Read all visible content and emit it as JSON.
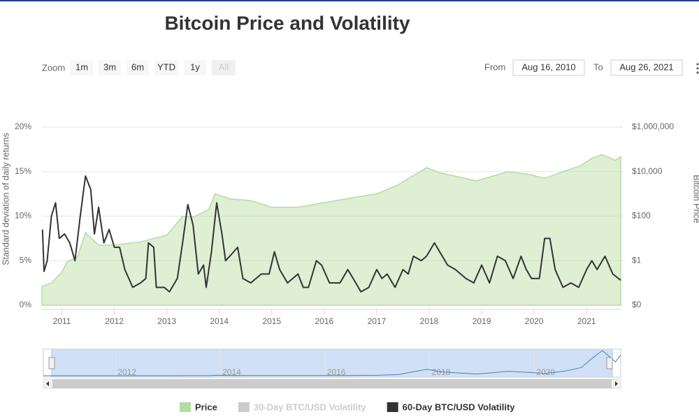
{
  "range_selector": {
    "zoom_label": "Zoom",
    "buttons": [
      "1m",
      "3m",
      "6m",
      "YTD",
      "1y",
      "All"
    ],
    "from_label": "From",
    "from": "Aug 16, 2010",
    "to_label": "To",
    "to": "Aug 26, 2021"
  },
  "chart_data": {
    "type": "line",
    "title": "Bitcoin Price and Volatility",
    "y_label": "Standard deviation of daily returns",
    "y2_label": "Bitcoin Price",
    "xlim": [
      2010.62,
      2021.65
    ],
    "xticks": [
      2011,
      2012,
      2013,
      2014,
      2015,
      2016,
      2017,
      2018,
      2019,
      2020,
      2021
    ],
    "ylim": [
      0,
      20
    ],
    "yticks": [
      {
        "value": 0,
        "label": "0%"
      },
      {
        "value": 5,
        "label": "5%"
      },
      {
        "value": 10,
        "label": "10%"
      },
      {
        "value": 15,
        "label": "15%"
      },
      {
        "value": 20,
        "label": "20%"
      }
    ],
    "y2lim": [
      0.01,
      1000000
    ],
    "y2_log": true,
    "y2ticks": [
      {
        "value": 0.01,
        "label": "$0"
      },
      {
        "value": 1,
        "label": "$1"
      },
      {
        "value": 100,
        "label": "$100"
      },
      {
        "value": 10000,
        "label": "$10,000"
      },
      {
        "value": 1000000,
        "label": "$1,000,000"
      }
    ],
    "grid": true,
    "series": [
      {
        "name": "Price",
        "color": "#b5dca0",
        "axis": "y2",
        "kind": "area",
        "x": [
          2010.62,
          2010.8,
          2011.0,
          2011.1,
          2011.3,
          2011.45,
          2011.7,
          2012.0,
          2012.5,
          2013.0,
          2013.3,
          2013.5,
          2013.8,
          2013.92,
          2014.2,
          2014.6,
          2015.0,
          2015.5,
          2016.0,
          2016.5,
          2017.0,
          2017.4,
          2017.95,
          2018.2,
          2018.9,
          2019.5,
          2019.9,
          2020.2,
          2020.6,
          2020.9,
          2021.1,
          2021.3,
          2021.55,
          2021.65
        ],
        "values": [
          0.07,
          0.1,
          0.3,
          0.9,
          1.5,
          18,
          5,
          5,
          7,
          14,
          100,
          90,
          200,
          1000,
          600,
          500,
          250,
          250,
          400,
          650,
          1000,
          2500,
          15000,
          9000,
          3800,
          10000,
          7500,
          5000,
          11000,
          19000,
          40000,
          58000,
          32000,
          48000
        ]
      },
      {
        "name": "30-Day BTC/USD Volatility",
        "color": "#cccccc",
        "visible": false
      },
      {
        "name": "60-Day BTC/USD Volatility",
        "color": "#333333",
        "axis": "y",
        "x": [
          2010.63,
          2010.66,
          2010.72,
          2010.8,
          2010.88,
          2010.95,
          2011.05,
          2011.15,
          2011.25,
          2011.35,
          2011.45,
          2011.55,
          2011.62,
          2011.7,
          2011.8,
          2011.9,
          2012.0,
          2012.1,
          2012.2,
          2012.35,
          2012.5,
          2012.6,
          2012.65,
          2012.75,
          2012.8,
          2012.95,
          2013.05,
          2013.2,
          2013.3,
          2013.4,
          2013.5,
          2013.6,
          2013.7,
          2013.75,
          2013.85,
          2013.95,
          2014.05,
          2014.12,
          2014.2,
          2014.35,
          2014.45,
          2014.6,
          2014.8,
          2014.95,
          2015.05,
          2015.15,
          2015.3,
          2015.5,
          2015.6,
          2015.7,
          2015.85,
          2015.95,
          2016.1,
          2016.3,
          2016.45,
          2016.55,
          2016.7,
          2016.85,
          2017.0,
          2017.1,
          2017.2,
          2017.35,
          2017.5,
          2017.6,
          2017.7,
          2017.85,
          2017.95,
          2018.1,
          2018.2,
          2018.35,
          2018.5,
          2018.7,
          2018.85,
          2019.0,
          2019.15,
          2019.3,
          2019.45,
          2019.6,
          2019.75,
          2019.85,
          2019.95,
          2020.1,
          2020.2,
          2020.3,
          2020.4,
          2020.55,
          2020.7,
          2020.85,
          2021.0,
          2021.1,
          2021.2,
          2021.35,
          2021.5,
          2021.65
        ],
        "values": [
          8.5,
          3.8,
          5,
          10,
          11.5,
          7.5,
          8,
          7,
          5,
          10,
          14.5,
          13,
          8,
          11,
          7,
          8.5,
          6.5,
          6.5,
          4,
          2,
          2.5,
          3,
          7,
          6.5,
          2,
          2,
          1.5,
          3,
          7,
          11.3,
          9,
          3.5,
          4.5,
          2,
          6,
          11.5,
          8,
          5,
          5.5,
          6.5,
          3,
          2.5,
          3.5,
          3.5,
          6,
          4,
          2.5,
          3.5,
          2,
          2,
          5,
          4.5,
          2.5,
          2.5,
          4,
          3,
          1.5,
          2,
          4,
          3,
          3.5,
          2,
          4,
          3.5,
          5.5,
          5,
          5.5,
          7,
          6,
          4.5,
          4,
          3,
          2.5,
          4.5,
          2.5,
          5.5,
          5,
          3,
          5.5,
          4,
          3,
          3,
          7.5,
          7.5,
          4,
          2,
          2.5,
          2,
          4,
          5,
          4,
          5.5,
          3.5,
          2.8
        ]
      }
    ],
    "legend": "bottom",
    "navigator": {
      "xticks": [
        2012,
        2014,
        2016,
        2018,
        2020
      ]
    }
  }
}
